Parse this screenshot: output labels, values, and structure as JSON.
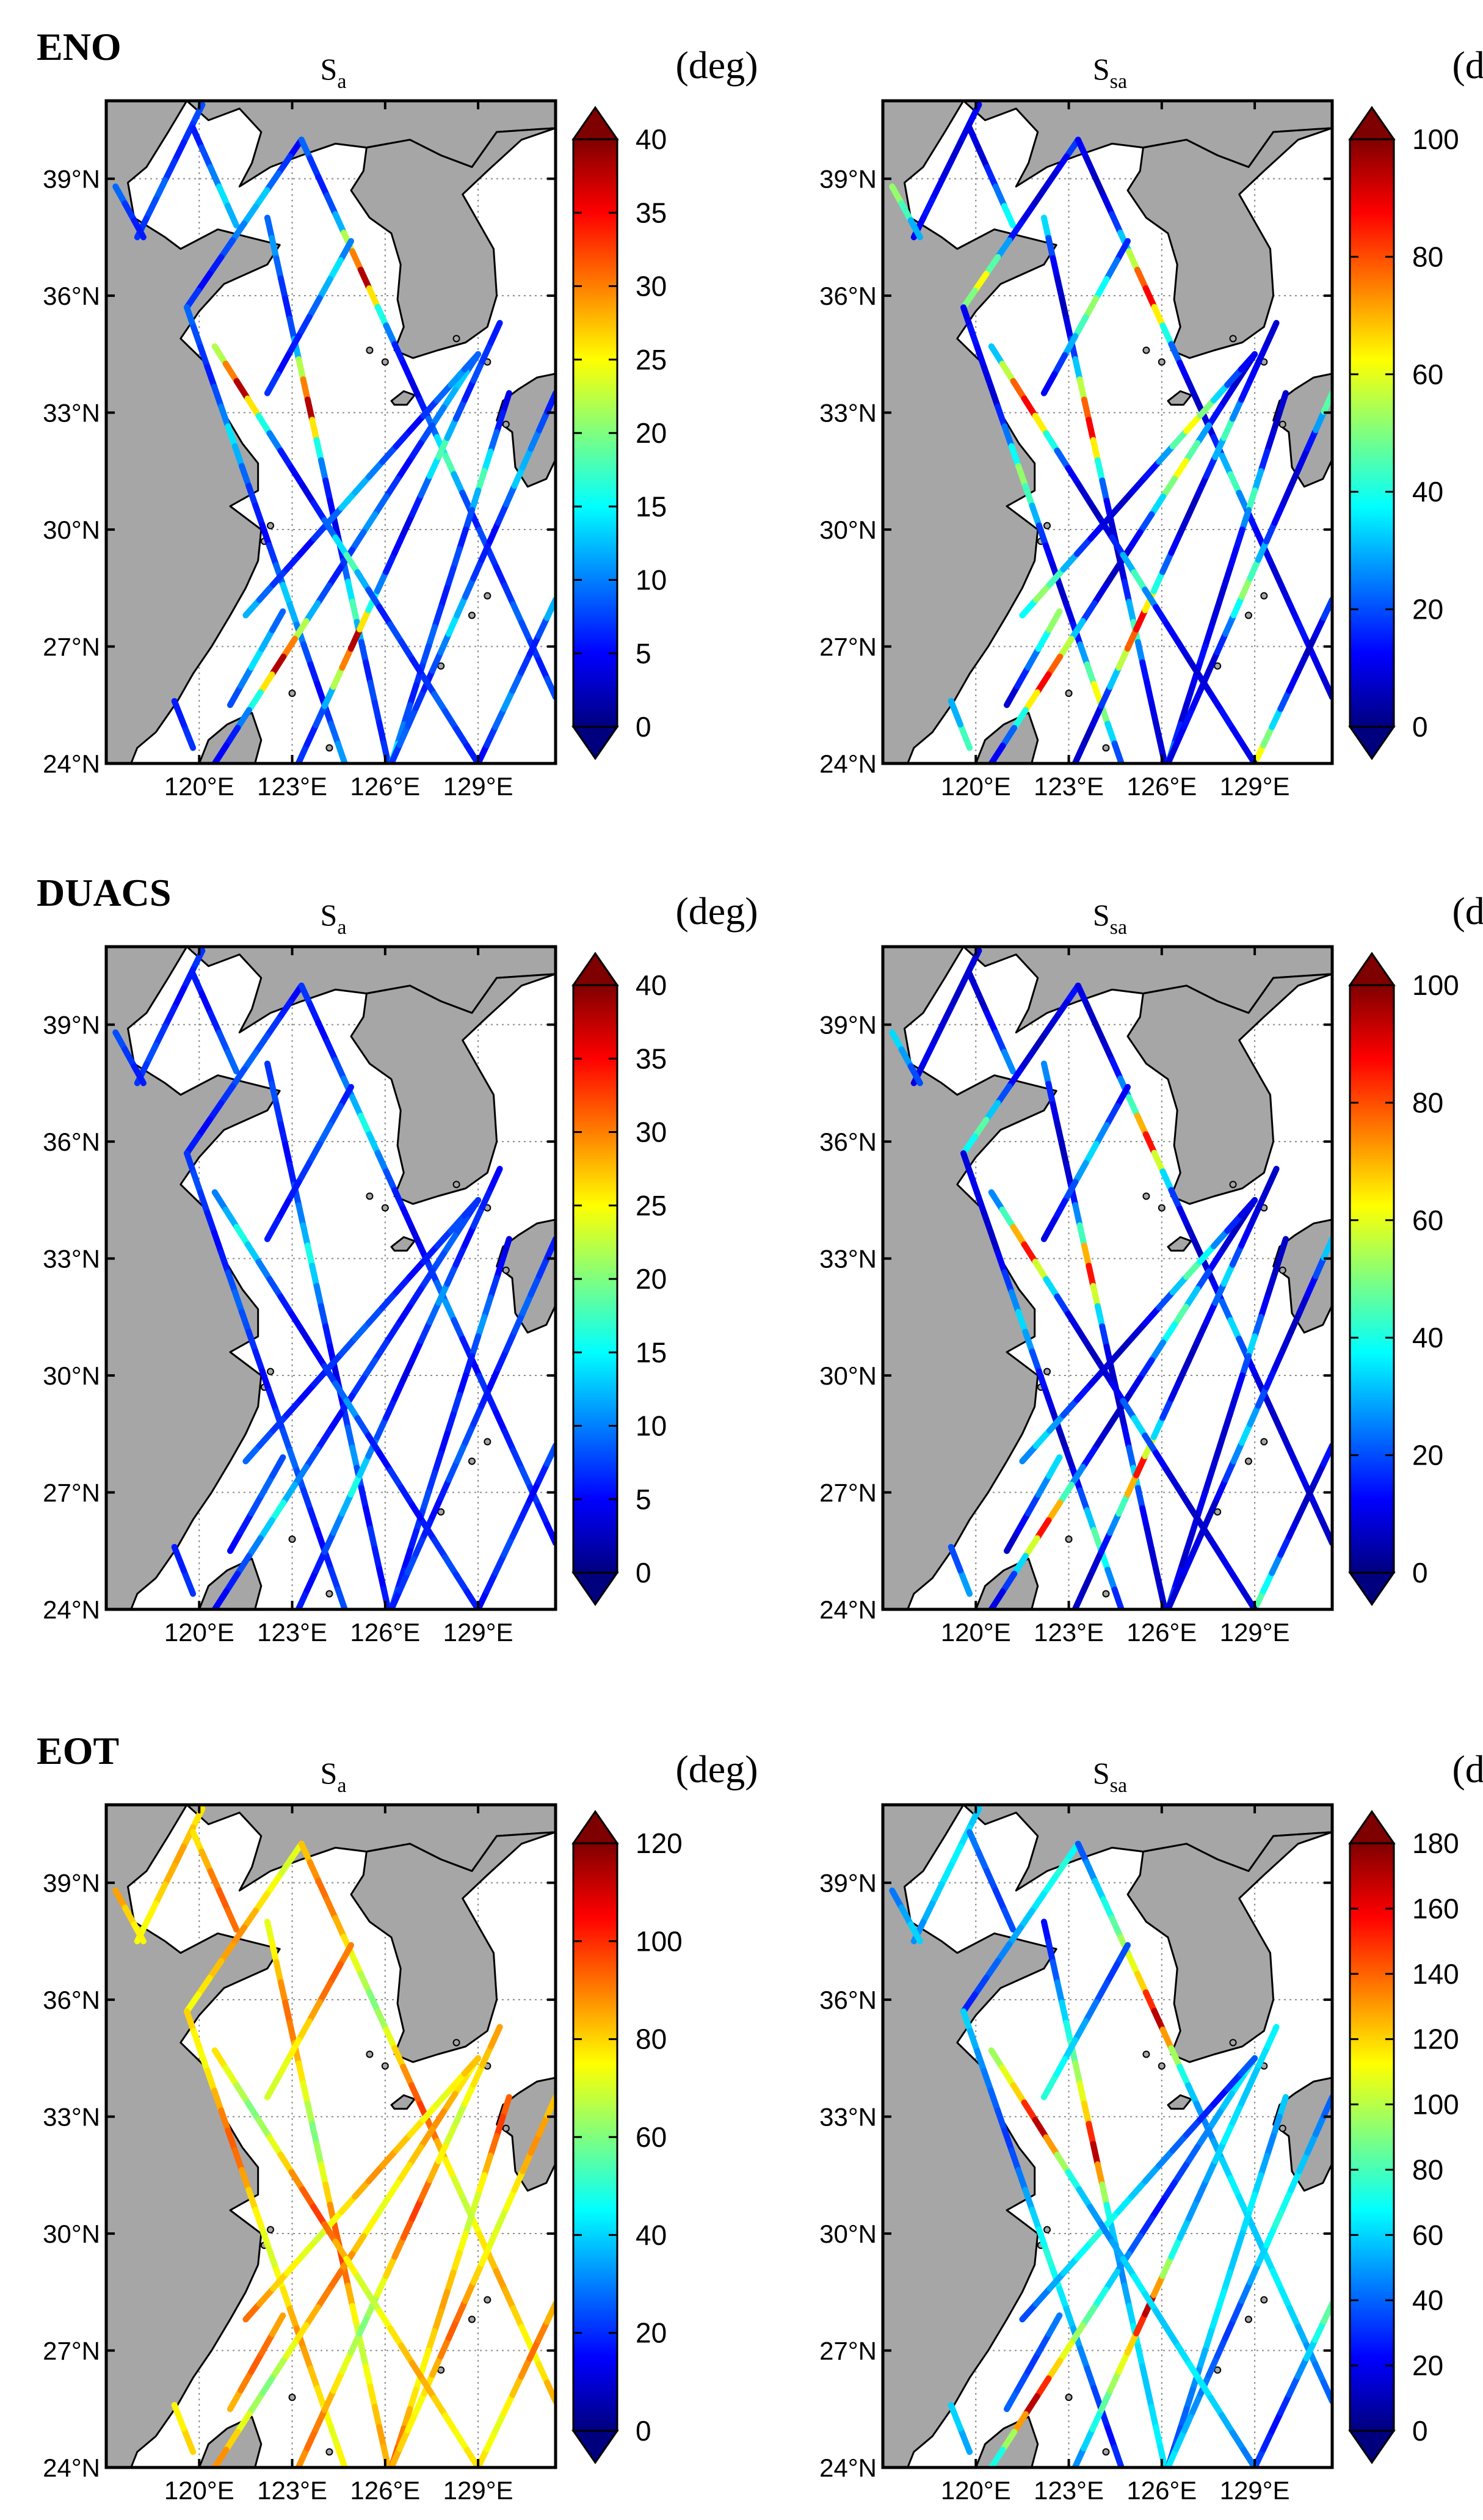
{
  "map_data": {
    "region": {
      "lon": [
        117,
        131.5
      ],
      "lat": [
        24,
        41
      ]
    },
    "lat_ticks": [
      {
        "value": 39,
        "label": "39°N"
      },
      {
        "value": 36,
        "label": "36°N"
      },
      {
        "value": 33,
        "label": "33°N"
      },
      {
        "value": 30,
        "label": "30°N"
      },
      {
        "value": 27,
        "label": "27°N"
      },
      {
        "value": 24,
        "label": "24°N"
      }
    ],
    "lon_ticks": [
      {
        "value": 120,
        "label": "120°E"
      },
      {
        "value": 123,
        "label": "123°E"
      },
      {
        "value": 126,
        "label": "126°E"
      },
      {
        "value": 129,
        "label": "129°E"
      }
    ],
    "colors": {
      "land": "#a6a6a6",
      "ocean": "#ffffff",
      "grid": "#8c8c8c",
      "colormap": [
        "#00007f",
        "#0000ff",
        "#007fff",
        "#00ffff",
        "#7fff7f",
        "#ffff00",
        "#ff7f00",
        "#ff0000",
        "#7f0000"
      ]
    },
    "unit_label": "(deg)",
    "rows": [
      {
        "label": "ENO",
        "panels": [
          {
            "title": "S",
            "subscript": "a",
            "range": [
              0,
              40
            ],
            "ticks": [
              0,
              5,
              10,
              15,
              20,
              25,
              30,
              35,
              40
            ],
            "pattern": [
              8,
              7,
              6,
              7,
              9,
              8,
              7,
              6,
              8,
              10,
              14,
              12,
              9,
              7,
              6,
              5,
              7,
              9,
              13,
              12,
              10,
              8,
              6,
              5,
              7,
              9,
              11,
              9,
              7,
              6,
              8,
              12,
              22,
              30,
              38,
              26,
              16,
              10,
              6,
              5,
              4,
              6,
              9,
              14,
              18,
              12,
              8,
              6
            ]
          },
          {
            "title": "S",
            "subscript": "sa",
            "range": [
              0,
              100
            ],
            "ticks": [
              0,
              20,
              40,
              60,
              80,
              100
            ],
            "pattern": [
              12,
              10,
              8,
              9,
              11,
              14,
              12,
              10,
              8,
              16,
              24,
              38,
              52,
              44,
              30,
              18,
              12,
              9,
              7,
              10,
              14,
              28,
              46,
              62,
              50,
              34,
              20,
              12,
              8,
              6,
              10,
              18,
              32,
              56,
              78,
              88,
              64,
              40,
              22,
              12,
              8,
              6,
              9,
              16,
              30,
              44,
              26,
              14
            ]
          }
        ]
      },
      {
        "label": "DUACS",
        "panels": [
          {
            "title": "S",
            "subscript": "a",
            "range": [
              0,
              40
            ],
            "ticks": [
              0,
              5,
              10,
              15,
              20,
              25,
              30,
              35,
              40
            ],
            "pattern": [
              7,
              6,
              5,
              6,
              7,
              8,
              7,
              6,
              5,
              6,
              8,
              9,
              8,
              7,
              6,
              5,
              6,
              7,
              8,
              9,
              8,
              7,
              6,
              5,
              6,
              7,
              8,
              7,
              6,
              5,
              6,
              8,
              10,
              12,
              16,
              13,
              10,
              8,
              6,
              5,
              4,
              5,
              7,
              9,
              11,
              8,
              6,
              5
            ]
          },
          {
            "title": "S",
            "subscript": "sa",
            "range": [
              0,
              100
            ],
            "ticks": [
              0,
              20,
              40,
              60,
              80,
              100
            ],
            "pattern": [
              9,
              8,
              7,
              8,
              9,
              11,
              10,
              8,
              7,
              12,
              18,
              26,
              34,
              28,
              20,
              14,
              10,
              8,
              6,
              8,
              12,
              20,
              32,
              46,
              38,
              26,
              16,
              10,
              7,
              6,
              8,
              14,
              26,
              44,
              70,
              86,
              58,
              34,
              18,
              10,
              7,
              6,
              8,
              12,
              22,
              34,
              20,
              12
            ]
          }
        ]
      },
      {
        "label": "EOT",
        "panels": [
          {
            "title": "S",
            "subscript": "a",
            "range": [
              0,
              120
            ],
            "ticks": [
              0,
              20,
              40,
              60,
              80,
              100,
              120
            ],
            "pattern": [
              78,
              82,
              86,
              84,
              80,
              76,
              74,
              78,
              84,
              90,
              94,
              92,
              86,
              80,
              76,
              72,
              70,
              74,
              78,
              84,
              88,
              86,
              82,
              78,
              74,
              72,
              76,
              82,
              88,
              92,
              90,
              84,
              78,
              72,
              66,
              60,
              64,
              72,
              80,
              88,
              94,
              98,
              92,
              84,
              76,
              70,
              68,
              74
            ]
          },
          {
            "title": "S",
            "subscript": "sa",
            "range": [
              0,
              180
            ],
            "ticks": [
              0,
              20,
              40,
              60,
              80,
              100,
              120,
              140,
              160,
              180
            ],
            "pattern": [
              58,
              62,
              66,
              64,
              60,
              54,
              48,
              44,
              40,
              36,
              32,
              36,
              44,
              52,
              60,
              68,
              74,
              70,
              64,
              58,
              52,
              46,
              40,
              34,
              28,
              24,
              30,
              38,
              48,
              60,
              72,
              84,
              96,
              108,
              120,
              150,
              170,
              130,
              96,
              72,
              58,
              50,
              46,
              52,
              60,
              66,
              62,
              58
            ]
          }
        ]
      }
    ]
  }
}
